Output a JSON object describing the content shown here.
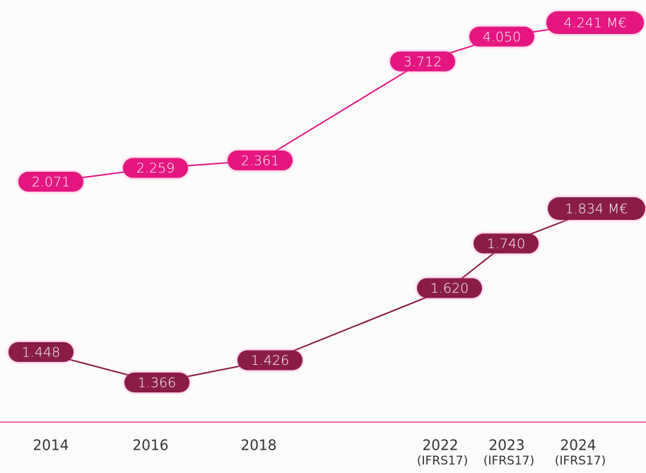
{
  "chart_data": {
    "type": "line",
    "categories": [
      "2014",
      "2016",
      "2018",
      "2022",
      "2023",
      "2024"
    ],
    "category_notes": [
      null,
      null,
      null,
      "(IFRS17)",
      "(IFRS17)",
      "(IFRS17)"
    ],
    "series": [
      {
        "color": "#e5157f",
        "values": [
          2071,
          2259,
          2361,
          3712,
          4050,
          4241
        ],
        "value_labels": [
          "2.071",
          "2.259",
          "2.361",
          "3.712",
          "4.050",
          "4.241 M€"
        ]
      },
      {
        "color": "#8a1b46",
        "values": [
          1448,
          1366,
          1426,
          1620,
          1740,
          1834
        ],
        "value_labels": [
          "1.448",
          "1.366",
          "1.426",
          "1.620",
          "1.740",
          "1.834 M€"
        ]
      }
    ]
  }
}
